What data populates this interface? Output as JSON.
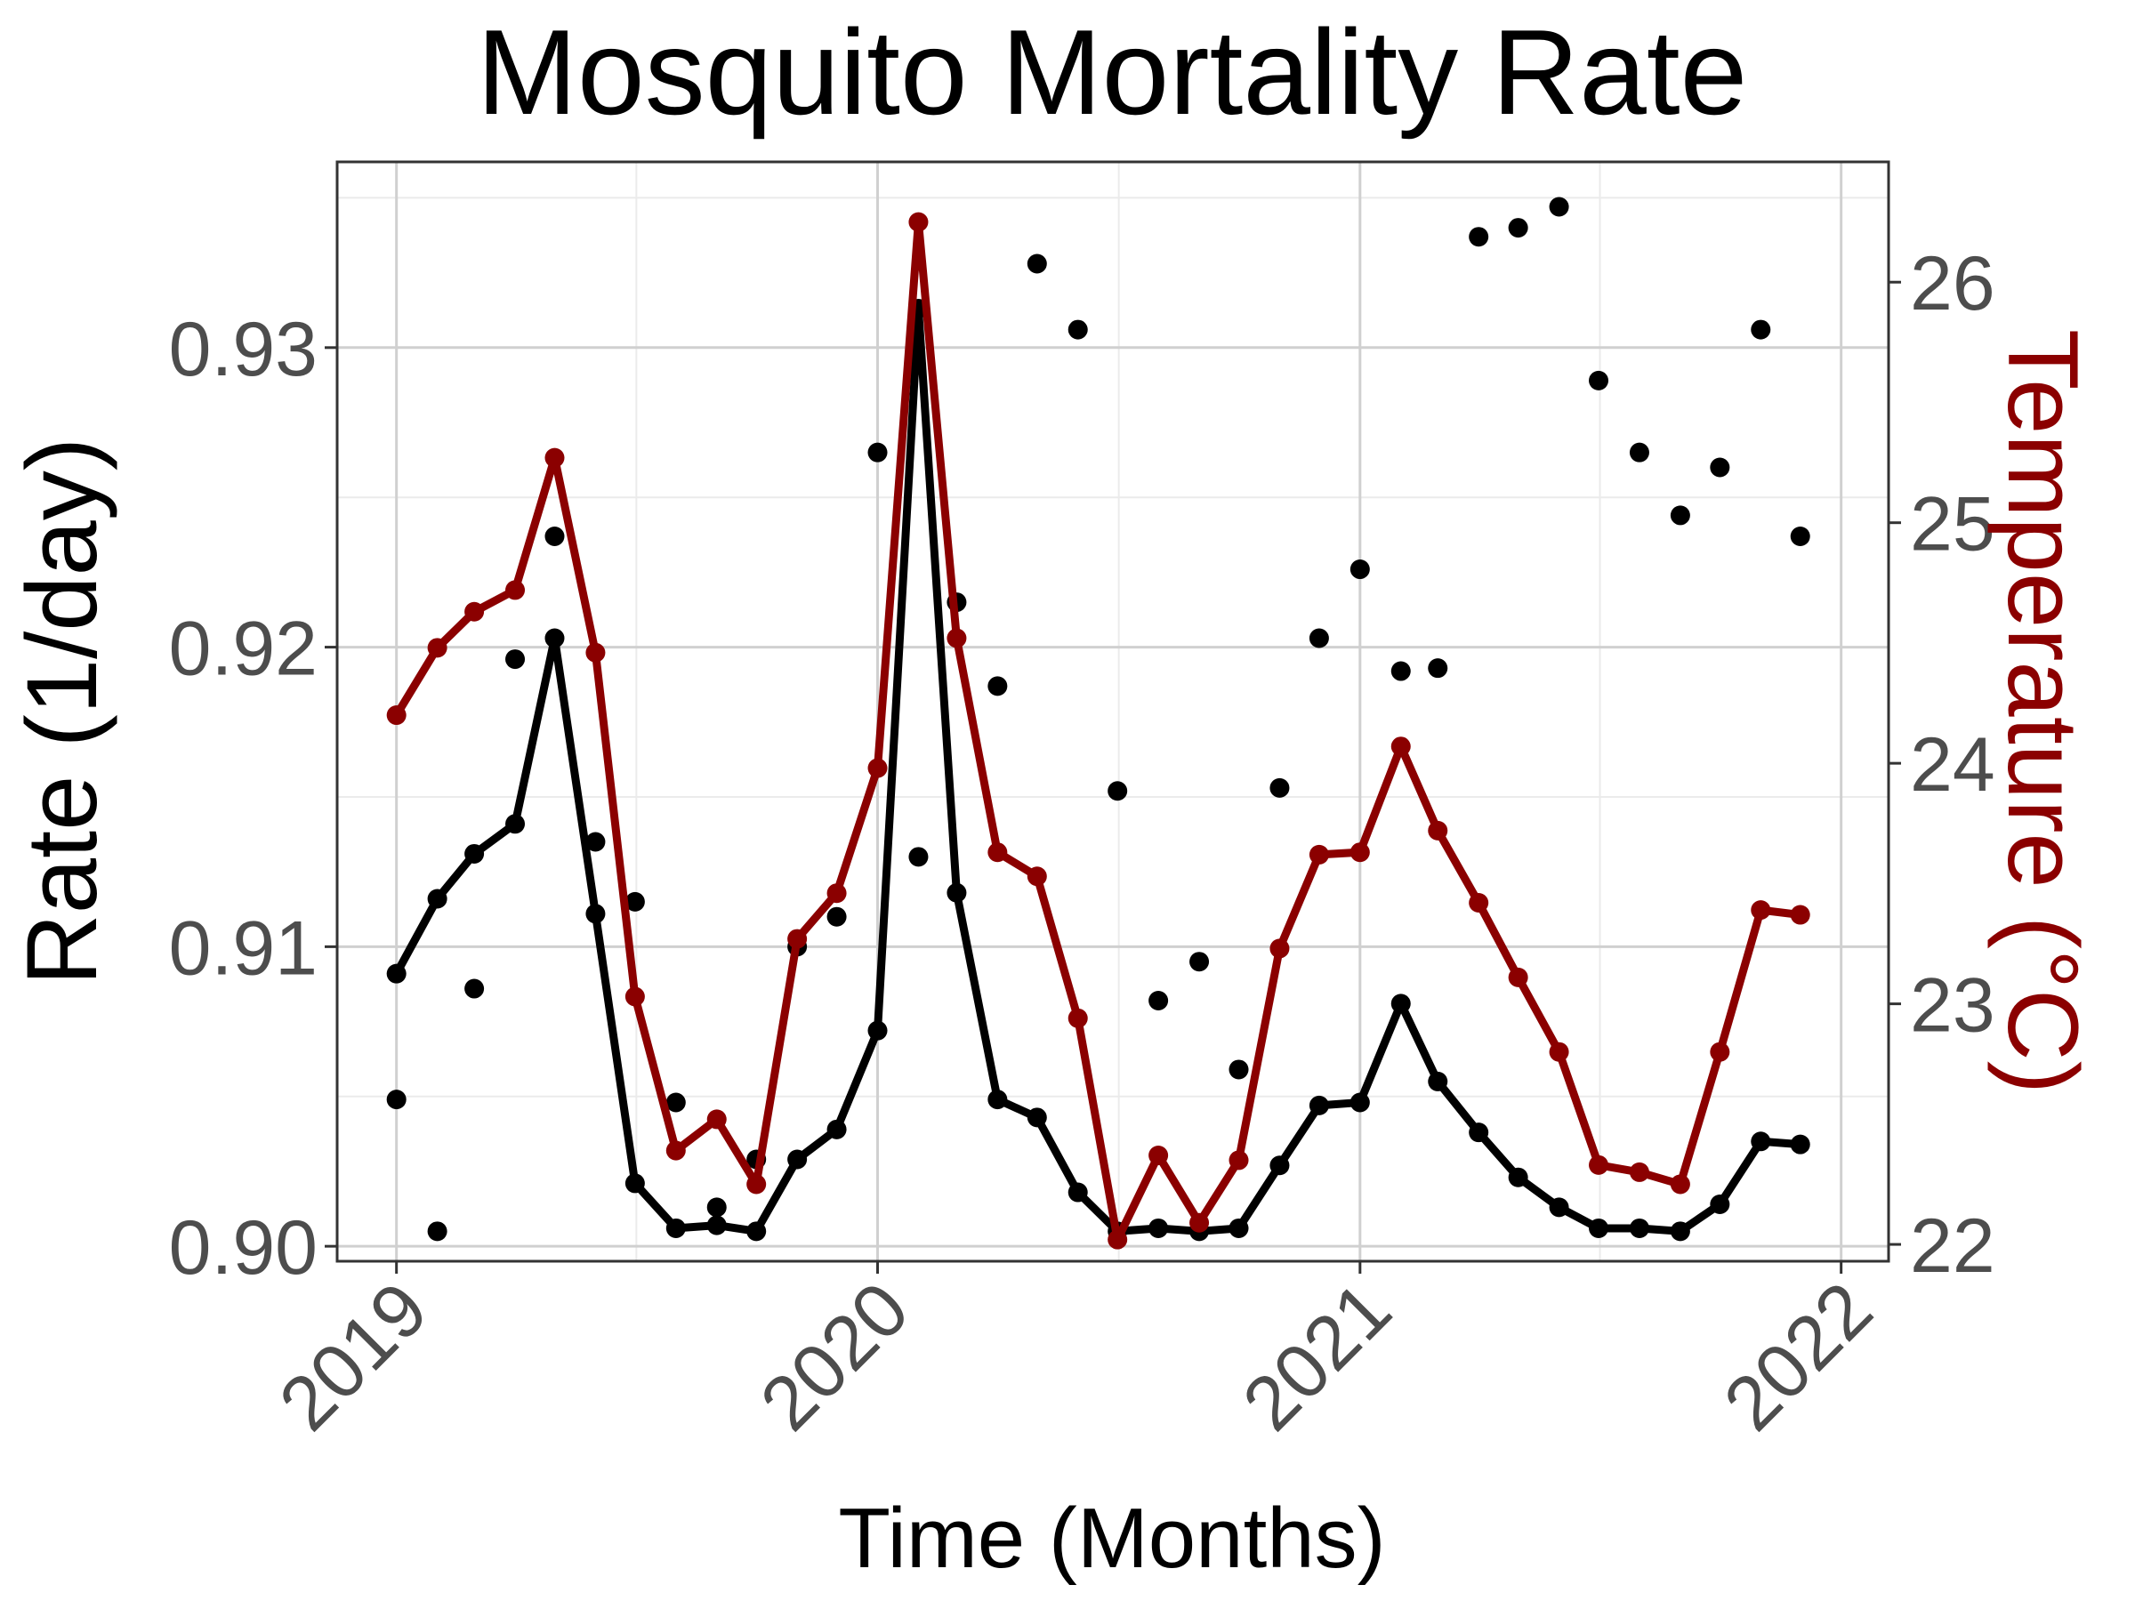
{
  "chart_data": {
    "type": "line",
    "title": "Mosquito Mortality Rate",
    "xlabel": "Time (Months)",
    "ylabel": "Rate (1/day)",
    "y2label": "Temperature (°C)",
    "x_ticks": [
      "2019",
      "2020",
      "2021",
      "2022"
    ],
    "y_ticks": [
      "0.90",
      "0.91",
      "0.92",
      "0.93"
    ],
    "y2_ticks": [
      "22",
      "23",
      "24",
      "25",
      "26"
    ],
    "ylim": [
      0.8995,
      0.9362
    ],
    "y2lim": [
      21.93,
      26.5
    ],
    "xlim": [
      "2018-11-17",
      "2022-02-06"
    ],
    "grid": true,
    "colors": {
      "rate": "#000000",
      "temperature": "#8b0000",
      "observed": "#000000"
    },
    "x": [
      "2019-01",
      "2019-02",
      "2019-03",
      "2019-04",
      "2019-05",
      "2019-06",
      "2019-07",
      "2019-08",
      "2019-09",
      "2019-10",
      "2019-11",
      "2019-12",
      "2020-01",
      "2020-02",
      "2020-03",
      "2020-04",
      "2020-05",
      "2020-06",
      "2020-07",
      "2020-08",
      "2020-09",
      "2020-10",
      "2020-11",
      "2020-12",
      "2021-01",
      "2021-02",
      "2021-03",
      "2021-04",
      "2021-05",
      "2021-06",
      "2021-07",
      "2021-08",
      "2021-09",
      "2021-10",
      "2021-11",
      "2021-12"
    ],
    "series": [
      {
        "style": "line",
        "values": [
          0.9091,
          0.9116,
          0.9131,
          0.9141,
          0.9203,
          0.9111,
          0.9021,
          0.9006,
          0.9007,
          0.9005,
          0.9029,
          0.9039,
          0.9072,
          0.9313,
          0.9118,
          0.9049,
          0.9043,
          0.9018,
          0.9005,
          0.9006,
          0.9005,
          0.9006,
          0.9027,
          0.9047,
          0.9048,
          0.9081,
          0.9055,
          0.9038,
          0.9023,
          0.9013,
          0.9006,
          0.9006,
          0.9005,
          0.9014,
          0.9035,
          0.9034
        ]
      },
      {
        "style": "points",
        "values": [
          0.9049,
          0.9005,
          0.9086,
          0.9196,
          0.9237,
          0.9135,
          0.9115,
          0.9048,
          0.9013,
          0.9029,
          0.91,
          0.911,
          0.9265,
          0.913,
          0.9215,
          0.9187,
          0.9328,
          0.9306,
          0.9152,
          0.9082,
          0.9095,
          0.9059,
          0.9153,
          0.9203,
          0.9226,
          0.9192,
          0.9193,
          0.9337,
          0.934,
          0.9347,
          0.9289,
          0.9265,
          0.9244,
          0.926,
          0.9306,
          0.9237
        ]
      },
      {
        "style": "line",
        "axis": "right",
        "values": [
          24.2,
          24.48,
          24.63,
          24.72,
          25.27,
          24.46,
          23.03,
          22.39,
          22.52,
          22.25,
          23.27,
          23.46,
          23.98,
          26.25,
          24.52,
          23.63,
          23.53,
          22.94,
          22.02,
          22.37,
          22.09,
          22.35,
          23.23,
          23.62,
          23.63,
          24.07,
          23.72,
          23.42,
          23.11,
          22.8,
          22.33,
          22.3,
          22.25,
          22.8,
          23.39,
          23.37
        ]
      }
    ]
  }
}
